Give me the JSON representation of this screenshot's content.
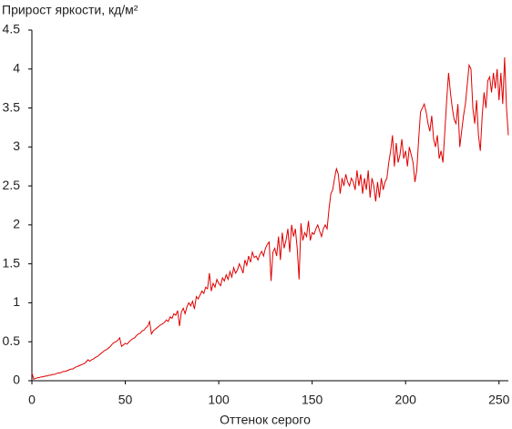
{
  "chart_data": {
    "type": "line",
    "title": "Прирост яркости, кд/м²",
    "xlabel": "Оттенок серого",
    "color": "#e00000",
    "xlim": [
      0,
      255
    ],
    "ylim": [
      0,
      4.5
    ],
    "xticks": [
      0,
      50,
      100,
      150,
      200,
      250
    ],
    "yticks": [
      0,
      0.5,
      1,
      1.5,
      2,
      2.5,
      3,
      3.5,
      4,
      4.5
    ],
    "x": [
      0,
      1,
      2,
      3,
      4,
      5,
      6,
      7,
      8,
      9,
      10,
      11,
      12,
      13,
      14,
      15,
      16,
      17,
      18,
      19,
      20,
      21,
      22,
      23,
      24,
      25,
      26,
      27,
      28,
      29,
      30,
      31,
      32,
      33,
      34,
      35,
      36,
      37,
      38,
      39,
      40,
      41,
      42,
      43,
      44,
      45,
      46,
      47,
      48,
      49,
      50,
      51,
      52,
      53,
      54,
      55,
      56,
      57,
      58,
      59,
      60,
      61,
      62,
      63,
      64,
      65,
      66,
      67,
      68,
      69,
      70,
      71,
      72,
      73,
      74,
      75,
      76,
      77,
      78,
      79,
      80,
      81,
      82,
      83,
      84,
      85,
      86,
      87,
      88,
      89,
      90,
      91,
      92,
      93,
      94,
      95,
      96,
      97,
      98,
      99,
      100,
      101,
      102,
      103,
      104,
      105,
      106,
      107,
      108,
      109,
      110,
      111,
      112,
      113,
      114,
      115,
      116,
      117,
      118,
      119,
      120,
      121,
      122,
      123,
      124,
      125,
      126,
      127,
      128,
      129,
      130,
      131,
      132,
      133,
      134,
      135,
      136,
      137,
      138,
      139,
      140,
      141,
      142,
      143,
      144,
      145,
      146,
      147,
      148,
      149,
      150,
      151,
      152,
      153,
      154,
      155,
      156,
      157,
      158,
      159,
      160,
      161,
      162,
      163,
      164,
      165,
      166,
      167,
      168,
      169,
      170,
      171,
      172,
      173,
      174,
      175,
      176,
      177,
      178,
      179,
      180,
      181,
      182,
      183,
      184,
      185,
      186,
      187,
      188,
      189,
      190,
      191,
      192,
      193,
      194,
      195,
      196,
      197,
      198,
      199,
      200,
      201,
      202,
      203,
      204,
      205,
      206,
      207,
      208,
      209,
      210,
      211,
      212,
      213,
      214,
      215,
      216,
      217,
      218,
      219,
      220,
      221,
      222,
      223,
      224,
      225,
      226,
      227,
      228,
      229,
      230,
      231,
      232,
      233,
      234,
      235,
      236,
      237,
      238,
      239,
      240,
      241,
      242,
      243,
      244,
      245,
      246,
      247,
      248,
      249,
      250,
      251,
      252,
      253,
      254,
      255
    ],
    "values": [
      0.1,
      0.02,
      0.03,
      0.04,
      0.04,
      0.05,
      0.05,
      0.06,
      0.06,
      0.07,
      0.07,
      0.08,
      0.08,
      0.09,
      0.1,
      0.1,
      0.11,
      0.12,
      0.12,
      0.13,
      0.14,
      0.15,
      0.15,
      0.17,
      0.18,
      0.19,
      0.2,
      0.21,
      0.22,
      0.24,
      0.27,
      0.25,
      0.27,
      0.28,
      0.3,
      0.31,
      0.33,
      0.35,
      0.37,
      0.39,
      0.4,
      0.42,
      0.44,
      0.47,
      0.49,
      0.5,
      0.52,
      0.55,
      0.44,
      0.46,
      0.48,
      0.47,
      0.5,
      0.52,
      0.54,
      0.55,
      0.58,
      0.6,
      0.61,
      0.64,
      0.65,
      0.68,
      0.7,
      0.76,
      0.6,
      0.64,
      0.66,
      0.68,
      0.7,
      0.72,
      0.73,
      0.75,
      0.78,
      0.76,
      0.82,
      0.8,
      0.86,
      0.84,
      0.9,
      0.7,
      0.88,
      0.93,
      0.86,
      0.95,
      1.0,
      0.96,
      1.02,
      0.92,
      1.08,
      1.05,
      1.1,
      1.15,
      1.12,
      1.2,
      1.18,
      1.38,
      1.15,
      1.25,
      1.2,
      1.3,
      1.25,
      1.22,
      1.32,
      1.28,
      1.36,
      1.3,
      1.4,
      1.33,
      1.45,
      1.38,
      1.42,
      1.5,
      1.45,
      1.38,
      1.55,
      1.48,
      1.6,
      1.52,
      1.65,
      1.58,
      1.6,
      1.55,
      1.62,
      1.66,
      1.6,
      1.7,
      1.75,
      1.78,
      1.28,
      1.65,
      1.7,
      1.6,
      1.85,
      1.55,
      1.9,
      1.7,
      1.8,
      1.95,
      1.65,
      2.0,
      1.85,
      1.95,
      1.7,
      1.3,
      2.02,
      1.8,
      1.9,
      1.85,
      2.05,
      1.8,
      1.9,
      1.88,
      1.95,
      2.0,
      1.92,
      1.85,
      1.95,
      2.0,
      1.95,
      2.2,
      2.4,
      2.45,
      2.6,
      2.72,
      2.65,
      2.4,
      2.6,
      2.5,
      2.65,
      2.55,
      2.5,
      2.6,
      2.55,
      2.45,
      2.7,
      2.5,
      2.65,
      2.4,
      2.6,
      2.45,
      2.7,
      2.35,
      2.6,
      2.5,
      2.3,
      2.55,
      2.35,
      2.6,
      2.45,
      2.55,
      2.6,
      2.8,
      2.95,
      3.15,
      2.75,
      3.05,
      2.8,
      2.9,
      3.1,
      2.85,
      2.95,
      2.75,
      3.0,
      2.9,
      2.8,
      2.55,
      2.7,
      3.1,
      3.45,
      3.5,
      3.55,
      3.45,
      3.3,
      3.2,
      3.4,
      3.1,
      3.0,
      3.15,
      2.85,
      2.95,
      2.8,
      3.2,
      3.6,
      3.95,
      3.7,
      3.5,
      3.35,
      3.3,
      3.55,
      3.0,
      3.2,
      3.4,
      3.55,
      3.8,
      4.05,
      4.0,
      3.5,
      3.3,
      3.6,
      3.15,
      2.95,
      3.4,
      3.7,
      3.5,
      3.85,
      3.9,
      3.7,
      3.95,
      3.75,
      4.0,
      3.6,
      3.95,
      3.55,
      4.15,
      3.5,
      3.15
    ]
  }
}
